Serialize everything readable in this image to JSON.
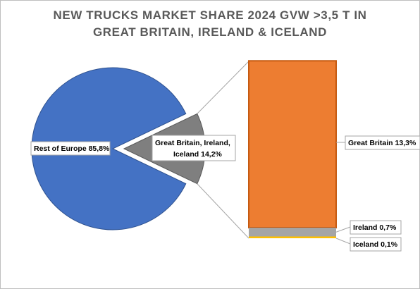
{
  "chart_data": {
    "type": "bar-of-pie",
    "title_line1": "NEW TRUCKS MARKET SHARE 2024 GVW >3,5 T IN",
    "title_line2": "GREAT BRITAIN, IRELAND & ICELAND",
    "pie": [
      {
        "label": "Rest of Europe 85,8%",
        "value": 85.8,
        "color": "#4472c4"
      },
      {
        "label_line1": "Great Britain, Ireland,",
        "label_line2": "Iceland 14,2%",
        "value": 14.2,
        "color": "#7f7f7f"
      }
    ],
    "stack": [
      {
        "label": "Great Britain 13,3%",
        "value": 13.3,
        "color": "#ed7d31"
      },
      {
        "label": "Ireland 0,7%",
        "value": 0.7,
        "color": "#a5a5a5"
      },
      {
        "label": "Iceland 0,1%",
        "value": 0.1,
        "color": "#ffc000"
      }
    ]
  }
}
